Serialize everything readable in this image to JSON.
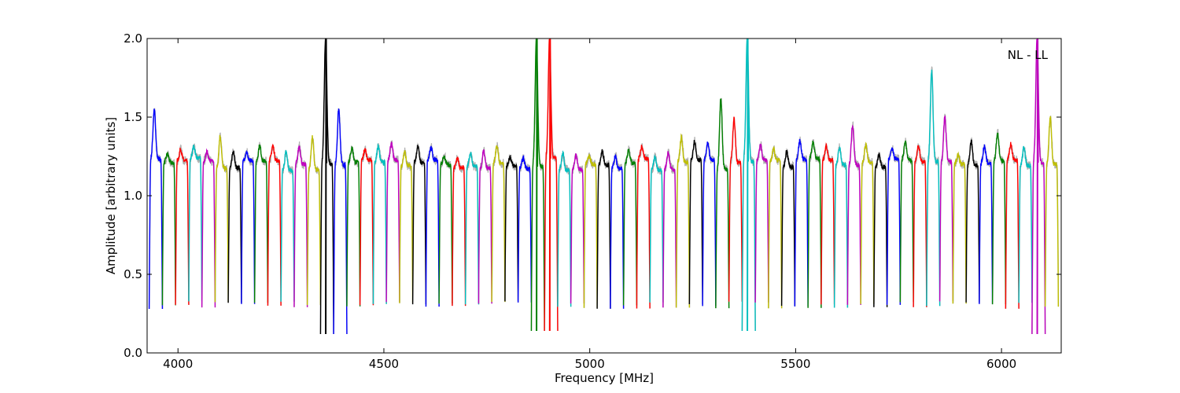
{
  "chart_data": {
    "type": "line",
    "title": "",
    "xlabel": "Frequency [MHz]",
    "ylabel": "Amplitude [arbitrary units]",
    "xlim": [
      3925,
      6145
    ],
    "ylim": [
      0.0,
      2.0
    ],
    "xticks": [
      4000,
      4500,
      5000,
      5500,
      6000
    ],
    "xtick_labels": [
      "4000",
      "4500",
      "5000",
      "5500",
      "6000"
    ],
    "yticks": [
      0.0,
      0.5,
      1.0,
      1.5,
      2.0
    ],
    "ytick_labels": [
      "0.0",
      "0.5",
      "1.0",
      "1.5",
      "2.0"
    ],
    "grid": false,
    "annotation": "NL - LL",
    "annotation_position": "top-right",
    "palette": [
      "#0000ff",
      "#008000",
      "#ff0000",
      "#00bfbf",
      "#bf00bf",
      "#bfbf00",
      "#000000"
    ],
    "band_start_mhz": 3930,
    "band_width_mhz": 32,
    "band_count": 69,
    "band_dip_level": 0.28,
    "band_plateau_level": 1.2,
    "band_overlay_color": "#b0b0b0",
    "band_peaks": [
      {
        "band": 0,
        "peak": 1.55
      },
      {
        "band": 5,
        "peak": 1.38
      },
      {
        "band": 12,
        "peak": 1.37
      },
      {
        "band": 13,
        "peak": 2.0,
        "min": 0.12
      },
      {
        "band": 14,
        "peak": 1.55,
        "min": 0.12
      },
      {
        "band": 18,
        "peak": 1.33
      },
      {
        "band": 29,
        "peak": 2.0,
        "min": 0.14
      },
      {
        "band": 30,
        "peak": 2.0,
        "min": 0.14
      },
      {
        "band": 40,
        "peak": 1.37
      },
      {
        "band": 43,
        "peak": 1.62
      },
      {
        "band": 44,
        "peak": 1.49
      },
      {
        "band": 45,
        "peak": 2.0,
        "min": 0.14
      },
      {
        "band": 53,
        "peak": 1.45
      },
      {
        "band": 59,
        "peak": 1.8
      },
      {
        "band": 60,
        "peak": 1.5
      },
      {
        "band": 62,
        "peak": 1.35
      },
      {
        "band": 64,
        "peak": 1.4
      },
      {
        "band": 67,
        "peak": 2.0,
        "min": 0.12
      },
      {
        "band": 68,
        "peak": 1.5
      }
    ]
  }
}
